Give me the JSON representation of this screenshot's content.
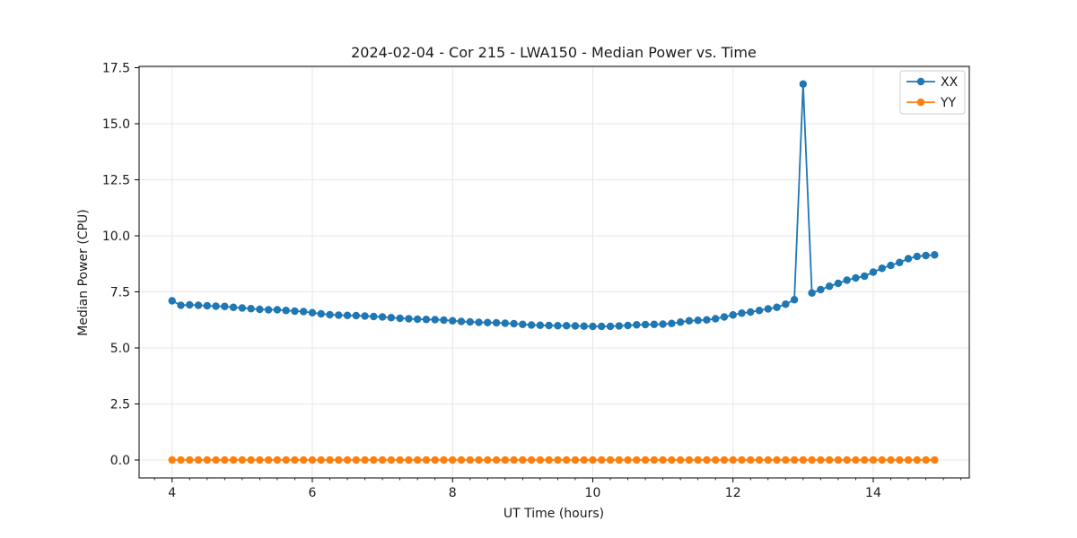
{
  "figure": {
    "background": "#ffffff",
    "spine_color": "#000000",
    "tick_color": "#000000"
  },
  "chart_data": {
    "type": "line",
    "title": "2024-02-04 - Cor 215 - LWA150 - Median Power vs. Time",
    "xlabel": "UT Time (hours)",
    "ylabel": "Median Power (CPU)",
    "xlim": [
      3.53,
      15.37
    ],
    "ylim": [
      -0.8,
      17.56
    ],
    "x_major_ticks": [
      4,
      6,
      8,
      10,
      12,
      14
    ],
    "x_tick_labels": [
      "4",
      "6",
      "8",
      "10",
      "12",
      "14"
    ],
    "x_minor_tick_step": 0.25,
    "y_major_ticks": [
      0,
      2.5,
      5,
      7.5,
      10,
      12.5,
      15,
      17.5
    ],
    "y_tick_labels": [
      "0.0",
      "2.5",
      "5.0",
      "7.5",
      "10.0",
      "12.5",
      "15.0",
      "17.5"
    ],
    "grid": true,
    "grid_color": "#e6e6e6",
    "legend": {
      "position": "upper right",
      "entries": [
        {
          "label": "XX",
          "color": "#1f77b4"
        },
        {
          "label": "YY",
          "color": "#ff7f0e"
        }
      ]
    },
    "x": [
      4.0,
      4.125,
      4.25,
      4.375,
      4.5,
      4.625,
      4.75,
      4.875,
      5.0,
      5.125,
      5.25,
      5.375,
      5.5,
      5.625,
      5.75,
      5.875,
      6.0,
      6.125,
      6.25,
      6.375,
      6.5,
      6.625,
      6.75,
      6.875,
      7.0,
      7.125,
      7.25,
      7.375,
      7.5,
      7.625,
      7.75,
      7.875,
      8.0,
      8.125,
      8.25,
      8.375,
      8.5,
      8.625,
      8.75,
      8.875,
      9.0,
      9.125,
      9.25,
      9.375,
      9.5,
      9.625,
      9.75,
      9.875,
      10.0,
      10.125,
      10.25,
      10.375,
      10.5,
      10.625,
      10.75,
      10.875,
      11.0,
      11.125,
      11.25,
      11.375,
      11.5,
      11.625,
      11.75,
      11.875,
      12.0,
      12.125,
      12.25,
      12.375,
      12.5,
      12.625,
      12.75,
      12.875,
      13.0,
      13.125,
      13.25,
      13.375,
      13.5,
      13.625,
      13.75,
      13.875,
      14.0,
      14.125,
      14.25,
      14.375,
      14.5,
      14.625,
      14.75,
      14.875
    ],
    "series": [
      {
        "name": "XX",
        "color": "#1f77b4",
        "marker": "circle",
        "values": [
          7.1,
          6.9,
          6.92,
          6.9,
          6.88,
          6.86,
          6.85,
          6.81,
          6.78,
          6.75,
          6.72,
          6.7,
          6.7,
          6.67,
          6.64,
          6.62,
          6.57,
          6.52,
          6.48,
          6.46,
          6.45,
          6.44,
          6.42,
          6.4,
          6.38,
          6.35,
          6.32,
          6.3,
          6.28,
          6.27,
          6.26,
          6.24,
          6.21,
          6.18,
          6.16,
          6.14,
          6.13,
          6.12,
          6.1,
          6.08,
          6.05,
          6.02,
          6.01,
          6.0,
          5.99,
          5.99,
          5.98,
          5.97,
          5.96,
          5.96,
          5.96,
          5.98,
          6.0,
          6.03,
          6.04,
          6.05,
          6.06,
          6.09,
          6.15,
          6.21,
          6.23,
          6.25,
          6.3,
          6.38,
          6.47,
          6.55,
          6.6,
          6.67,
          6.74,
          6.81,
          6.95,
          7.15,
          16.77,
          7.45,
          7.6,
          7.75,
          7.88,
          8.02,
          8.12,
          8.2,
          8.38,
          8.55,
          8.68,
          8.81,
          8.98,
          9.08,
          9.12,
          9.15
        ]
      },
      {
        "name": "YY",
        "color": "#ff7f0e",
        "marker": "circle",
        "values": [
          0.0,
          0.0,
          0.0,
          0.0,
          0.0,
          0.0,
          0.0,
          0.0,
          0.0,
          0.0,
          0.0,
          0.0,
          0.0,
          0.0,
          0.0,
          0.0,
          0.0,
          0.0,
          0.0,
          0.0,
          0.0,
          0.0,
          0.0,
          0.0,
          0.0,
          0.0,
          0.0,
          0.0,
          0.0,
          0.0,
          0.0,
          0.0,
          0.0,
          0.0,
          0.0,
          0.0,
          0.0,
          0.0,
          0.0,
          0.0,
          0.0,
          0.0,
          0.0,
          0.0,
          0.0,
          0.0,
          0.0,
          0.0,
          0.0,
          0.0,
          0.0,
          0.0,
          0.0,
          0.0,
          0.0,
          0.0,
          0.0,
          0.0,
          0.0,
          0.0,
          0.0,
          0.0,
          0.0,
          0.0,
          0.0,
          0.0,
          0.0,
          0.0,
          0.0,
          0.0,
          0.0,
          0.0,
          0.0,
          0.0,
          0.0,
          0.0,
          0.0,
          0.0,
          0.0,
          0.0,
          0.0,
          0.0,
          0.0,
          0.0,
          0.0,
          0.0,
          0.0,
          0.0
        ]
      }
    ]
  }
}
